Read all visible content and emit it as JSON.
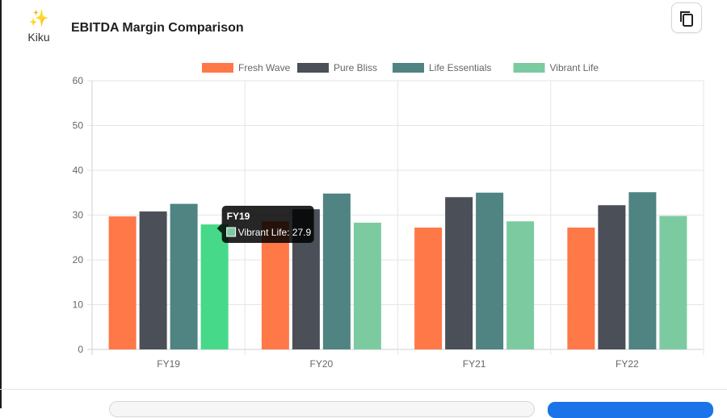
{
  "app": {
    "name": "Kiku",
    "icon": "sparkles-icon"
  },
  "title": "EBITDA Margin Comparison",
  "toolbar": {
    "copy_icon": "copy-icon"
  },
  "colors": {
    "Fresh Wave": "#ff7847",
    "Pure Bliss": "#4b4f57",
    "Life Essentials": "#4f8482",
    "Vibrant Life": "#7ccba0",
    "highlight": "#46d98a"
  },
  "tooltip": {
    "title": "FY19",
    "label": "Vibrant Life: 27.9"
  },
  "chart_data": {
    "type": "bar",
    "categories": [
      "FY19",
      "FY20",
      "FY21",
      "FY22"
    ],
    "series": [
      {
        "name": "Fresh Wave",
        "values": [
          29.7,
          28.6,
          27.2,
          27.2
        ]
      },
      {
        "name": "Pure Bliss",
        "values": [
          30.8,
          31.3,
          34.0,
          32.2
        ]
      },
      {
        "name": "Life Essentials",
        "values": [
          32.5,
          34.8,
          35.0,
          35.1
        ]
      },
      {
        "name": "Vibrant Life",
        "values": [
          27.9,
          28.3,
          28.6,
          29.8
        ]
      }
    ],
    "ylim": [
      0,
      60
    ],
    "yticks": [
      0,
      10,
      20,
      30,
      40,
      50,
      60
    ],
    "grid": true,
    "legend": "top",
    "highlighted": {
      "category": "FY19",
      "series": "Vibrant Life"
    }
  }
}
